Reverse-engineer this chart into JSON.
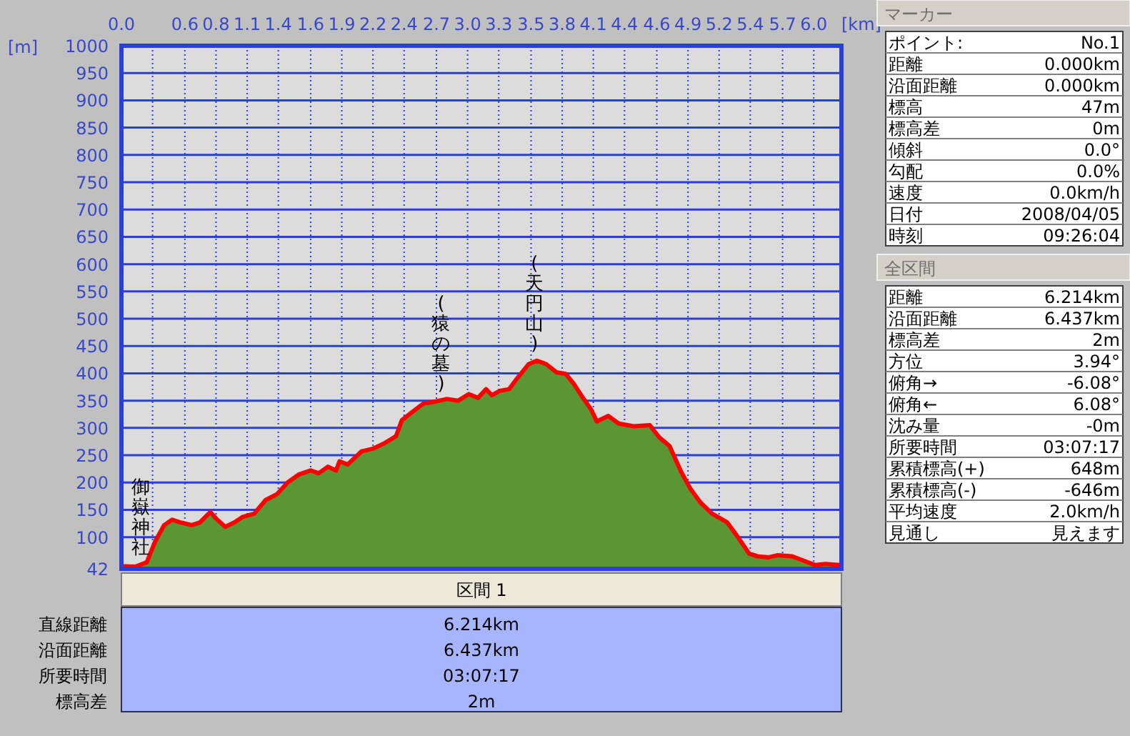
{
  "chart_data": [
    {
      "type": "area",
      "xlabel": "[km]",
      "ylabel": "[m]",
      "grid": true,
      "xlim": [
        0,
        6.24
      ],
      "ylim": [
        42,
        1000
      ],
      "xticks": [
        {
          "value": 0,
          "label": "0.0"
        },
        {
          "value": 0.27,
          "label": null
        },
        {
          "value": 0.55,
          "label": "0.6"
        },
        {
          "value": 0.82,
          "label": "0.8"
        },
        {
          "value": 1.09,
          "label": "1.1"
        },
        {
          "value": 1.36,
          "label": "1.4"
        },
        {
          "value": 1.64,
          "label": "1.6"
        },
        {
          "value": 1.91,
          "label": "1.9"
        },
        {
          "value": 2.18,
          "label": "2.2"
        },
        {
          "value": 2.45,
          "label": "2.4"
        },
        {
          "value": 2.73,
          "label": "2.7"
        },
        {
          "value": 3.0,
          "label": "3.0"
        },
        {
          "value": 3.27,
          "label": "3.3"
        },
        {
          "value": 3.55,
          "label": "3.5"
        },
        {
          "value": 3.82,
          "label": "3.8"
        },
        {
          "value": 4.09,
          "label": "4.1"
        },
        {
          "value": 4.36,
          "label": "4.4"
        },
        {
          "value": 4.64,
          "label": "4.6"
        },
        {
          "value": 4.91,
          "label": "4.9"
        },
        {
          "value": 5.18,
          "label": "5.2"
        },
        {
          "value": 5.45,
          "label": "5.4"
        },
        {
          "value": 5.73,
          "label": "5.7"
        },
        {
          "value": 6.0,
          "label": "6.0"
        }
      ],
      "yticks": [
        42,
        100,
        150,
        200,
        250,
        300,
        350,
        400,
        450,
        500,
        550,
        600,
        650,
        700,
        750,
        800,
        850,
        900,
        950,
        1000
      ],
      "x": [
        0,
        0.12,
        0.22,
        0.29,
        0.37,
        0.44,
        0.51,
        0.61,
        0.68,
        0.77,
        0.83,
        0.9,
        0.98,
        1.05,
        1.15,
        1.25,
        1.35,
        1.44,
        1.54,
        1.64,
        1.71,
        1.79,
        1.86,
        1.89,
        1.96,
        2.08,
        2.18,
        2.28,
        2.38,
        2.43,
        2.52,
        2.62,
        2.69,
        2.82,
        2.92,
        3.01,
        3.09,
        3.16,
        3.21,
        3.28,
        3.36,
        3.43,
        3.53,
        3.6,
        3.68,
        3.77,
        3.85,
        3.92,
        4.0,
        4.07,
        4.12,
        4.22,
        4.31,
        4.44,
        4.58,
        4.66,
        4.75,
        4.85,
        4.93,
        5.02,
        5.12,
        5.25,
        5.34,
        5.44,
        5.51,
        5.61,
        5.69,
        5.81,
        5.91,
        6.01,
        6.1,
        6.23
      ],
      "series": [
        {
          "color": "#5c9632",
          "values": [
            47,
            46,
            54,
            91,
            122,
            132,
            127,
            122,
            127,
            146,
            132,
            119,
            127,
            137,
            143,
            168,
            179,
            200,
            215,
            222,
            217,
            229,
            222,
            239,
            233,
            257,
            262,
            272,
            285,
            314,
            329,
            345,
            347,
            353,
            350,
            362,
            355,
            371,
            360,
            368,
            371,
            391,
            417,
            423,
            417,
            402,
            399,
            381,
            355,
            334,
            312,
            322,
            308,
            303,
            305,
            283,
            267,
            220,
            189,
            163,
            143,
            127,
            101,
            70,
            65,
            63,
            67,
            65,
            57,
            49,
            51,
            49
          ]
        }
      ],
      "annotations": [
        {
          "text": "御嶽神社",
          "x": 0.17,
          "y": 50
        },
        {
          "text": "(猿の墓)",
          "x": 2.77,
          "y": 350
        },
        {
          "text": "(天円山)",
          "x": 3.58,
          "y": 423
        }
      ]
    },
    {
      "type": "other",
      "title": "マーカー",
      "annotations": [
        "ポイント:",
        "No.1",
        "距離",
        "0.000km",
        "沿面距離",
        "0.000km",
        "標高",
        "47m",
        "標高差",
        "0m",
        "傾斜",
        "0.0°",
        "勾配",
        "0.0%",
        "速度",
        "0.0km/h",
        "日付",
        "2008/04/05",
        "時刻",
        "09:26:04"
      ]
    },
    {
      "type": "other",
      "title": "全区間",
      "annotations": [
        "距離",
        "6.214km",
        "沿面距離",
        "6.437km",
        "標高差",
        "2m",
        "方位",
        "3.94°",
        "俯角→",
        "-6.08°",
        "俯角←",
        "6.08°",
        "沈み量",
        "-0m",
        "所要時間",
        "03:07:17",
        "累積標高(+)",
        "648m",
        "累積標高(-)",
        "-646m",
        "平均速度",
        "2.0km/h",
        "見通し",
        "見えます"
      ]
    },
    {
      "type": "other",
      "title": "区間 1",
      "annotations": [
        "直線距離",
        "6.214km",
        "沿面距離",
        "6.437km",
        "所要時間",
        "03:07:17",
        "標高差",
        "2m"
      ]
    }
  ]
}
